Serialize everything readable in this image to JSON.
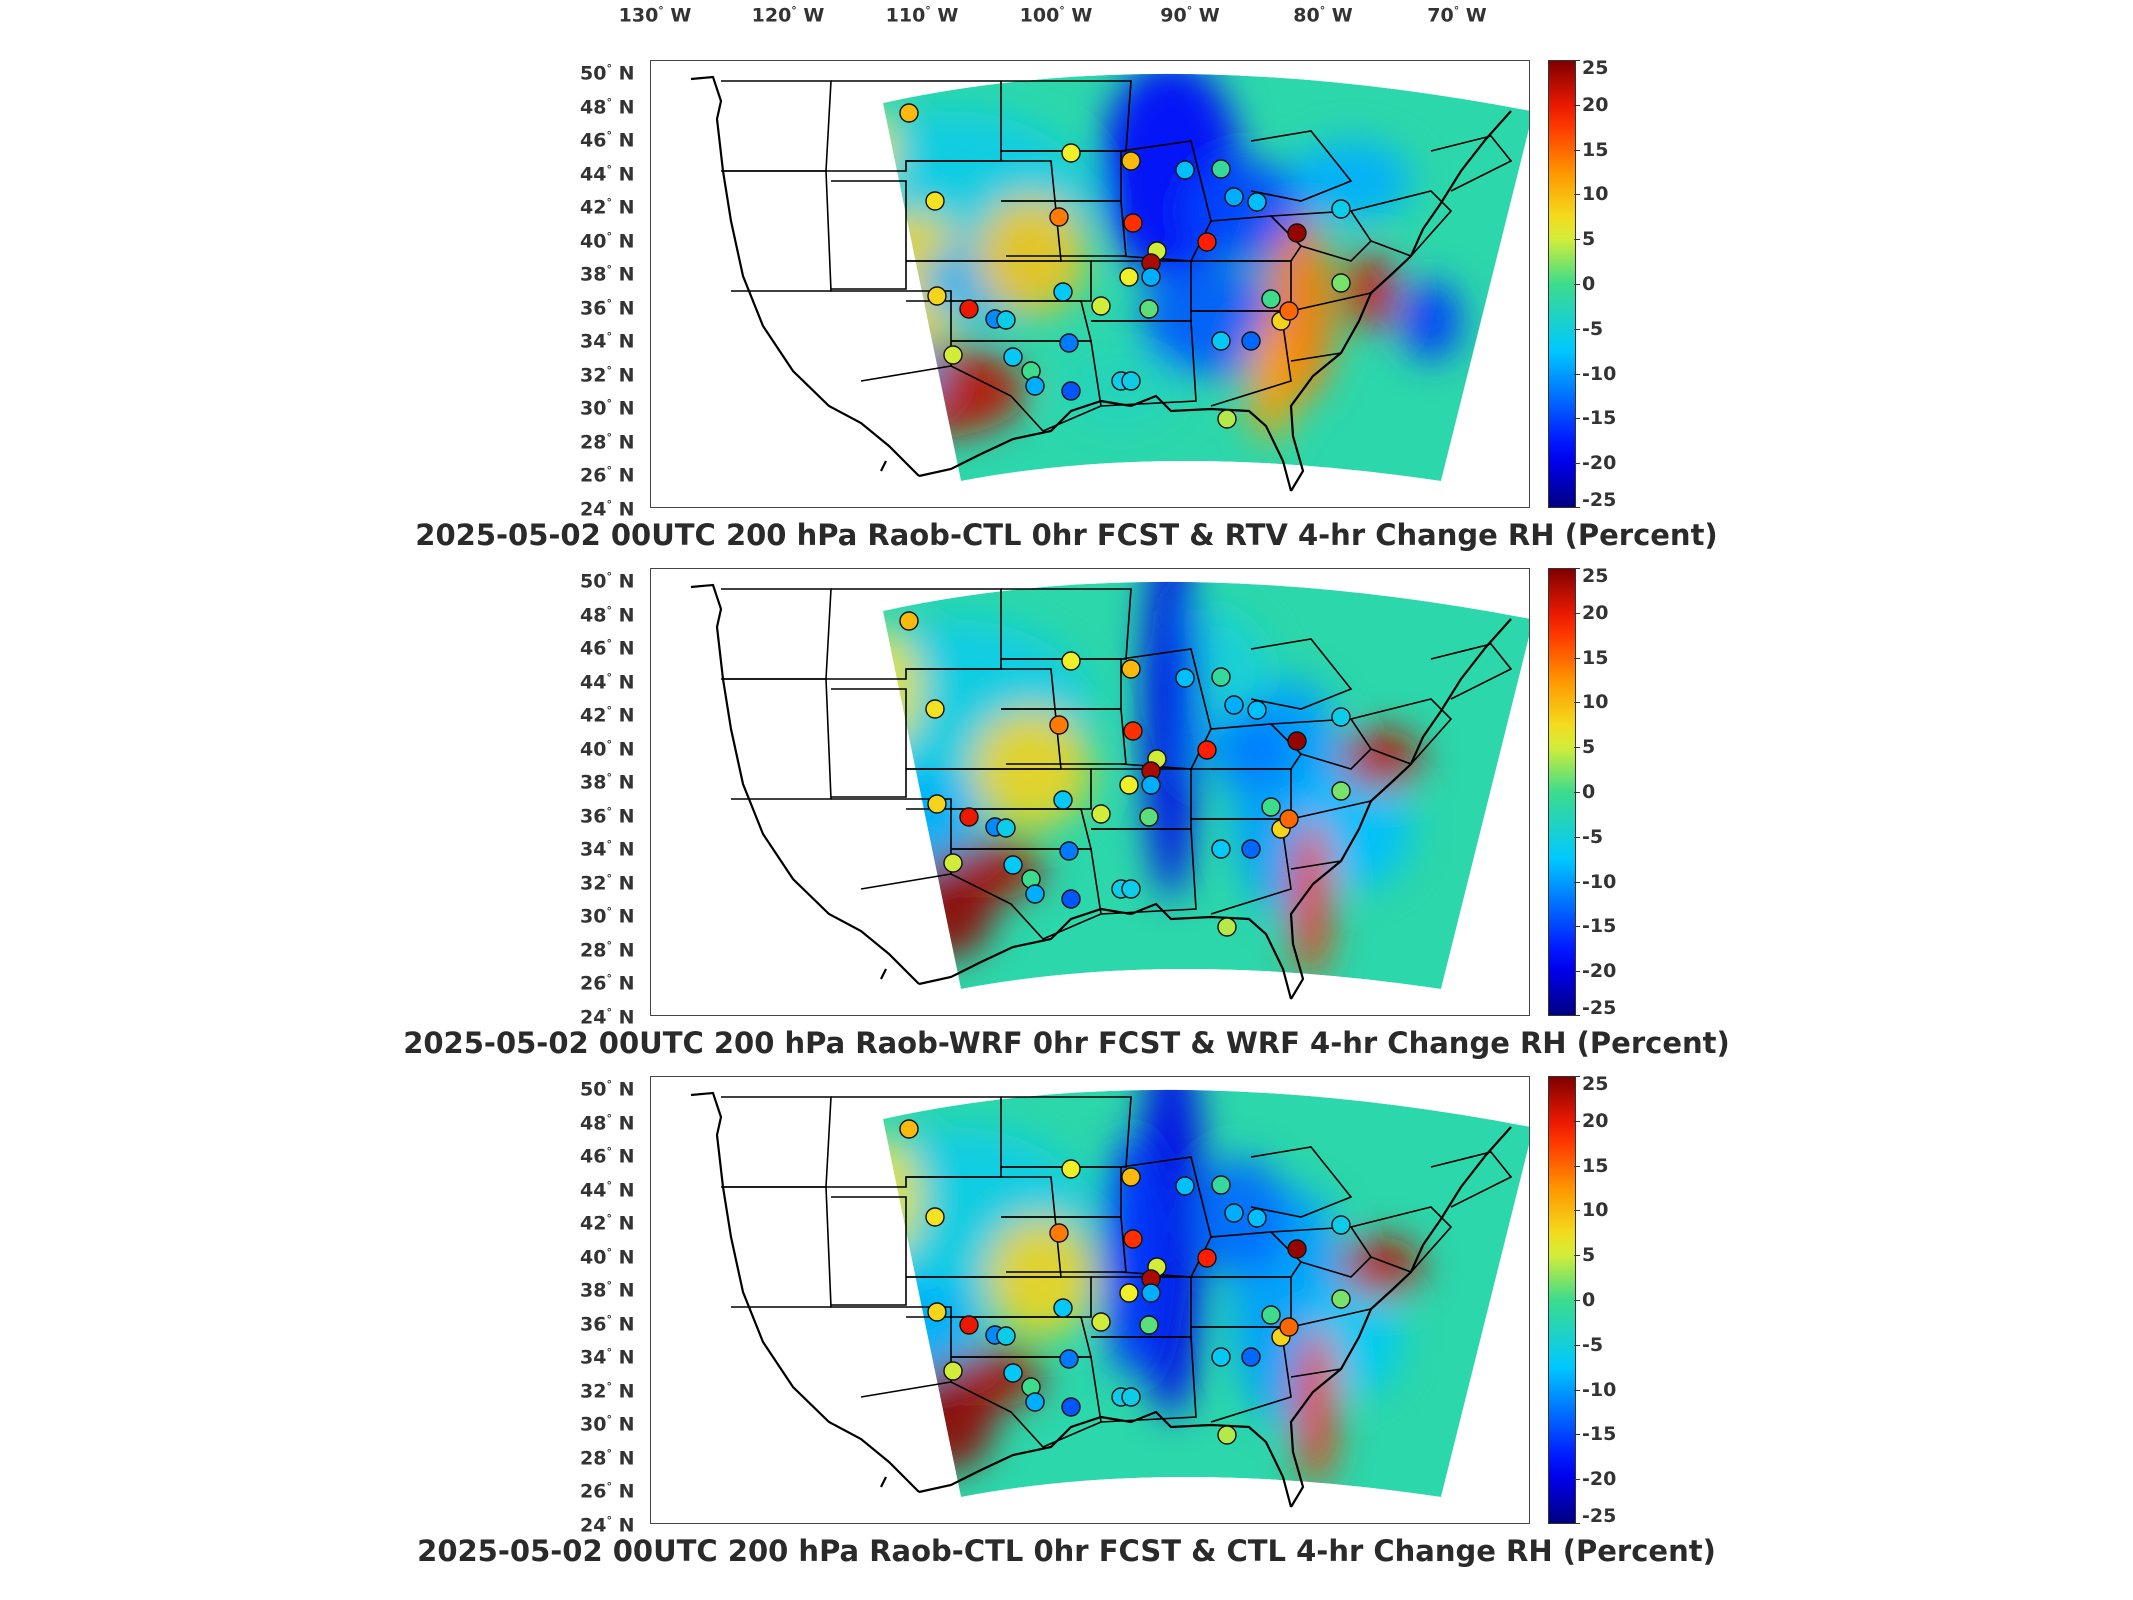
{
  "longitude_labels": [
    "130",
    "120",
    "110",
    "100",
    "90",
    "80",
    "70"
  ],
  "longitude_suffix": "W",
  "latitude_labels": [
    "50",
    "48",
    "46",
    "44",
    "42",
    "40",
    "38",
    "36",
    "34",
    "32",
    "30",
    "28",
    "26",
    "24"
  ],
  "latitude_suffix": "N",
  "degree_symbol": "°",
  "colorbar": {
    "ticks": [
      "25",
      "20",
      "15",
      "10",
      "5",
      "0",
      "-5",
      "-10",
      "-15",
      "-20",
      "-25"
    ],
    "min": -25,
    "max": 25,
    "colormap": "jet"
  },
  "colors": {
    "positive_strong": "#8b0000",
    "positive": "#ff3c00",
    "neutral": "#3cdc8c",
    "negative": "#0066ff",
    "negative_strong": "#000080",
    "state_lines": "#000000"
  },
  "panels": [
    {
      "title": "2025-05-02 00UTC 200 hPa Raob-CTL 0hr FCST & RTV 4-hr Change RH (Percent)"
    },
    {
      "title": "2025-05-02 00UTC 200 hPa Raob-WRF 0hr FCST & WRF 4-hr Change RH (Percent)"
    },
    {
      "title": "2025-05-02 00UTC 200 hPa Raob-CTL 0hr FCST & CTL 4-hr Change RH (Percent)"
    }
  ]
}
